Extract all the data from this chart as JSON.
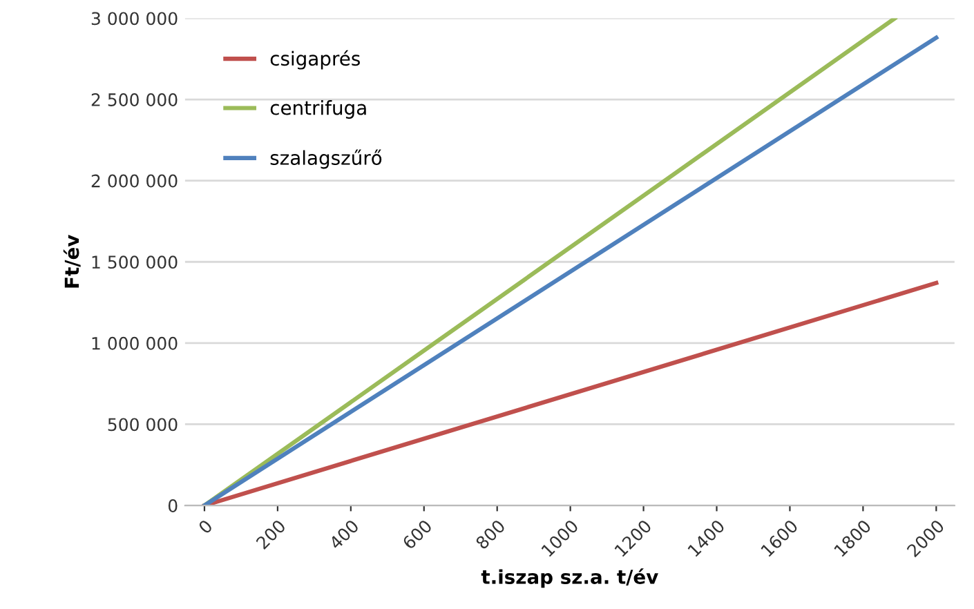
{
  "chart_data": {
    "type": "line",
    "xlabel": "t.iszap sz.a. t/év",
    "ylabel": "Ft/év",
    "series": [
      {
        "name": "csigaprés",
        "color": "#c0504d",
        "x": [
          0,
          2000
        ],
        "values": [
          0,
          1370000
        ]
      },
      {
        "name": "centrifuga",
        "color": "#9bbb59",
        "x": [
          0,
          1887
        ],
        "values": [
          0,
          3000000
        ]
      },
      {
        "name": "szalagszűrő",
        "color": "#4f81bd",
        "x": [
          0,
          2000
        ],
        "values": [
          0,
          2880000
        ]
      }
    ],
    "xlim": [
      -53,
      2050
    ],
    "ylim": [
      0,
      3000000
    ],
    "xticks": [
      0,
      200,
      400,
      600,
      800,
      1000,
      1200,
      1400,
      1600,
      1800,
      2000
    ],
    "yticks": [
      {
        "value": 0,
        "label": "0"
      },
      {
        "value": 500000,
        "label": "500 000"
      },
      {
        "value": 1000000,
        "label": "1 000 000"
      },
      {
        "value": 1500000,
        "label": "1 500 000"
      },
      {
        "value": 2000000,
        "label": "2 000 000"
      },
      {
        "value": 2500000,
        "label": "2 500 000"
      },
      {
        "value": 3000000,
        "label": "3 000 000"
      }
    ],
    "grid": "y",
    "legend": "top left",
    "marker": "none",
    "line_style": "solid"
  }
}
